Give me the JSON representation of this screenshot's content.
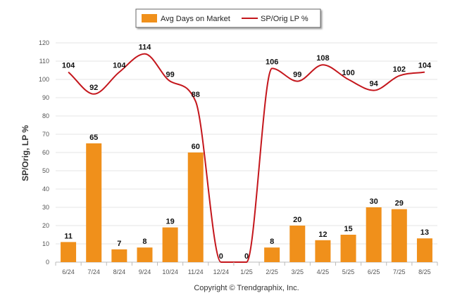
{
  "chart_data": {
    "type": "bar",
    "categories": [
      "6/24",
      "7/24",
      "8/24",
      "9/24",
      "10/24",
      "11/24",
      "12/24",
      "1/25",
      "2/25",
      "3/25",
      "4/25",
      "5/25",
      "6/25",
      "7/25",
      "8/25"
    ],
    "series": [
      {
        "name": "Avg Days on Market",
        "type": "bar",
        "color": "#f0901b",
        "values": [
          11,
          65,
          7,
          8,
          19,
          60,
          0,
          0,
          8,
          20,
          12,
          15,
          30,
          29,
          13
        ]
      },
      {
        "name": "SP/Orig LP %",
        "type": "line",
        "color": "#c4161c",
        "values": [
          104,
          92,
          104,
          114,
          99,
          88,
          0,
          0,
          106,
          99,
          108,
          100,
          94,
          102,
          104
        ]
      }
    ],
    "ylabel": "SP/Orig, LP %",
    "ylim": [
      0,
      120
    ],
    "yticks": [
      0,
      10,
      20,
      30,
      40,
      50,
      60,
      70,
      80,
      90,
      100,
      110,
      120
    ],
    "grid": true,
    "legend": "top-center",
    "copyright": "Copyright © Trendgraphix, Inc."
  }
}
